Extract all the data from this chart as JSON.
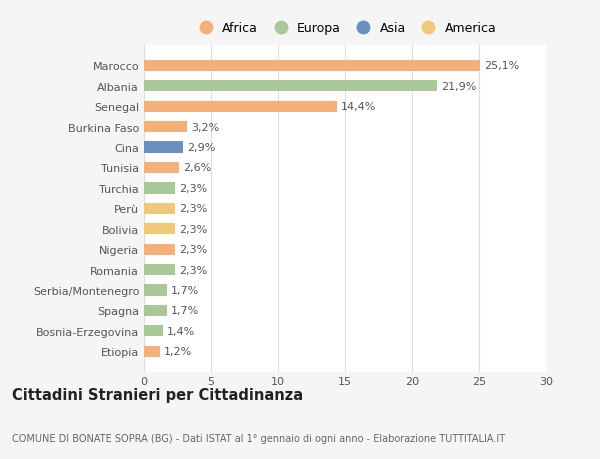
{
  "categories": [
    "Marocco",
    "Albania",
    "Senegal",
    "Burkina Faso",
    "Cina",
    "Tunisia",
    "Turchia",
    "Perù",
    "Bolivia",
    "Nigeria",
    "Romania",
    "Serbia/Montenegro",
    "Spagna",
    "Bosnia-Erzegovina",
    "Etiopia"
  ],
  "values": [
    25.1,
    21.9,
    14.4,
    3.2,
    2.9,
    2.6,
    2.3,
    2.3,
    2.3,
    2.3,
    2.3,
    1.7,
    1.7,
    1.4,
    1.2
  ],
  "labels": [
    "25,1%",
    "21,9%",
    "14,4%",
    "3,2%",
    "2,9%",
    "2,6%",
    "2,3%",
    "2,3%",
    "2,3%",
    "2,3%",
    "2,3%",
    "1,7%",
    "1,7%",
    "1,4%",
    "1,2%"
  ],
  "colors": [
    "#F5B07A",
    "#A8C898",
    "#F5B07A",
    "#F5B07A",
    "#6B8FBE",
    "#F5B07A",
    "#A8C898",
    "#F0C878",
    "#F0C878",
    "#F5B07A",
    "#A8C898",
    "#A8C898",
    "#A8C898",
    "#A8C898",
    "#F5B07A"
  ],
  "bar_height": 0.55,
  "xlim": [
    0,
    30
  ],
  "xticks": [
    0,
    5,
    10,
    15,
    20,
    25,
    30
  ],
  "legend_labels": [
    "Africa",
    "Europa",
    "Asia",
    "America"
  ],
  "legend_colors": [
    "#F5B07A",
    "#A8C898",
    "#6B8FBE",
    "#F0C878"
  ],
  "title": "Cittadini Stranieri per Cittadinanza",
  "subtitle": "COMUNE DI BONATE SOPRA (BG) - Dati ISTAT al 1° gennaio di ogni anno - Elaborazione TUTTITALIA.IT",
  "bg_color": "#f5f5f5",
  "plot_bg_color": "#ffffff",
  "grid_color": "#dddddd",
  "label_fontsize": 8,
  "tick_fontsize": 8,
  "ytick_fontsize": 8,
  "title_fontsize": 10.5,
  "subtitle_fontsize": 7
}
